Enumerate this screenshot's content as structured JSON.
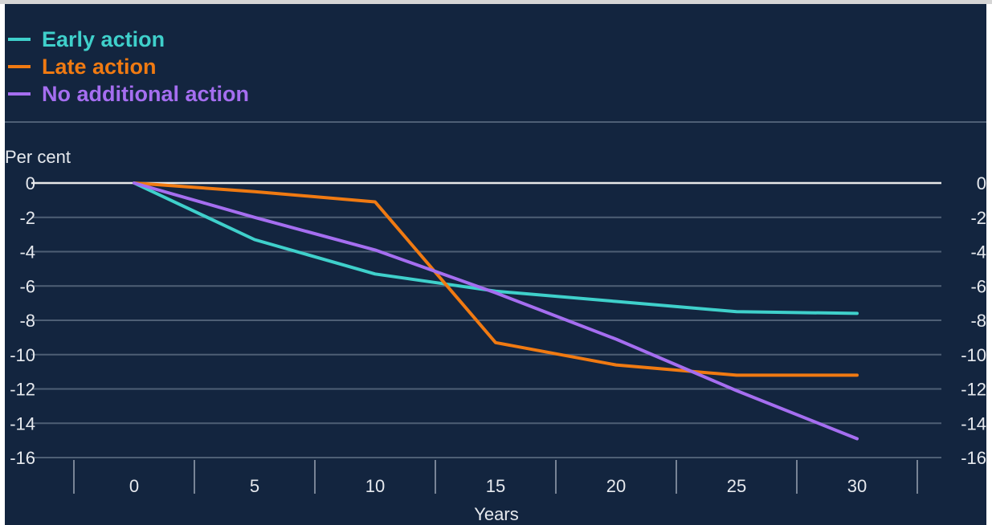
{
  "colors": {
    "background": "#13253f",
    "grid": "#4e5f75",
    "zero_line": "#e8e8e8",
    "text": "#e6e9ee"
  },
  "legend": [
    {
      "label": "Early action",
      "color": "#3fd0cb"
    },
    {
      "label": "Late action",
      "color": "#f07a12"
    },
    {
      "label": "No additional action",
      "color": "#a56ef0"
    }
  ],
  "chart_data": {
    "type": "line",
    "ylabel": "Per cent",
    "xlabel": "Years",
    "x": [
      0,
      5,
      10,
      15,
      20,
      25,
      30
    ],
    "ylim": [
      -16,
      0
    ],
    "yticks": [
      0,
      -2,
      -4,
      -6,
      -8,
      -10,
      -12,
      -14,
      -16
    ],
    "xticks": [
      0,
      5,
      10,
      15,
      20,
      25,
      30
    ],
    "grid": true,
    "right_axis_labels": true,
    "legend_position": "top-left",
    "series": [
      {
        "name": "Early action",
        "color": "#3fd0cb",
        "values": [
          0,
          -3.3,
          -5.3,
          -6.3,
          -6.9,
          -7.5,
          -7.6
        ]
      },
      {
        "name": "Late action",
        "color": "#f07a12",
        "values": [
          0,
          -0.5,
          -1.1,
          -9.3,
          -10.6,
          -11.2,
          -11.2
        ]
      },
      {
        "name": "No additional action",
        "color": "#a56ef0",
        "values": [
          0,
          -2.0,
          -3.9,
          -6.4,
          -9.1,
          -12.1,
          -14.9
        ]
      }
    ]
  }
}
